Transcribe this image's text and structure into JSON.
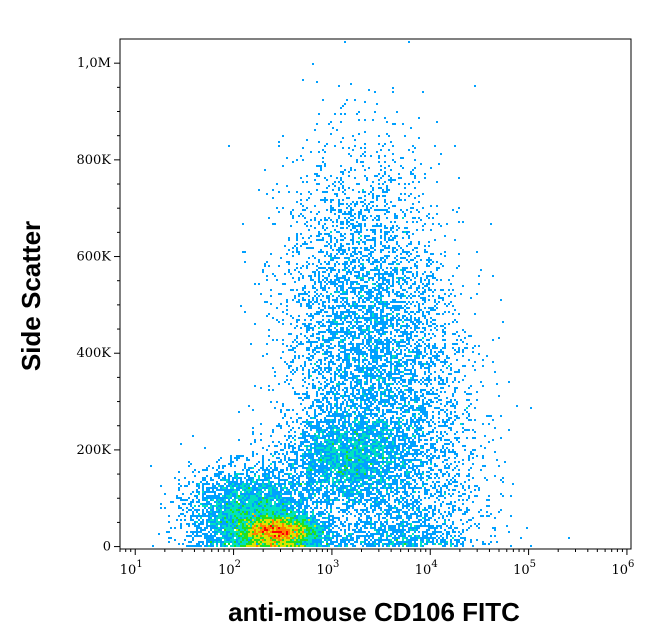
{
  "chart_data": {
    "type": "scatter",
    "title": "",
    "xlabel": "anti-mouse CD106 FITC",
    "ylabel": "Side Scatter",
    "x_scale": "log",
    "y_scale": "linear",
    "xlim": [
      7,
      1100000
    ],
    "ylim": [
      -5000,
      1050000
    ],
    "x_ticks": [
      {
        "value": 10,
        "base": "10",
        "exp": "1"
      },
      {
        "value": 100,
        "base": "10",
        "exp": "2"
      },
      {
        "value": 1000,
        "base": "10",
        "exp": "3"
      },
      {
        "value": 10000,
        "base": "10",
        "exp": "4"
      },
      {
        "value": 100000,
        "base": "10",
        "exp": "5"
      },
      {
        "value": 1000000,
        "base": "10",
        "exp": "6"
      }
    ],
    "y_ticks": [
      {
        "value": 0,
        "label": "0"
      },
      {
        "value": 200000,
        "label": "200K"
      },
      {
        "value": 400000,
        "label": "400K"
      },
      {
        "value": 600000,
        "label": "600K"
      },
      {
        "value": 800000,
        "label": "800K"
      },
      {
        "value": 1000000,
        "label": "1,0M"
      }
    ],
    "density_colormap": [
      "#0000ff",
      "#00a0ff",
      "#00e0c0",
      "#20e020",
      "#e0e000",
      "#ff8000",
      "#ff0000"
    ],
    "populations": [
      {
        "x_center": 280,
        "y_center": 30000,
        "count": 5000,
        "density": "highest"
      },
      {
        "x_center": 150,
        "y_center": 70000,
        "count": 4000,
        "density": "high"
      },
      {
        "x_center": 1300,
        "y_center": 180000,
        "count": 2500,
        "density": "high"
      },
      {
        "x_center": 2000,
        "y_center": 450000,
        "count": 4500,
        "density": "medium"
      },
      {
        "x_center": 5000,
        "y_center": 180000,
        "count": 3500,
        "density": "medium"
      }
    ],
    "grid": false,
    "legend": "none"
  }
}
